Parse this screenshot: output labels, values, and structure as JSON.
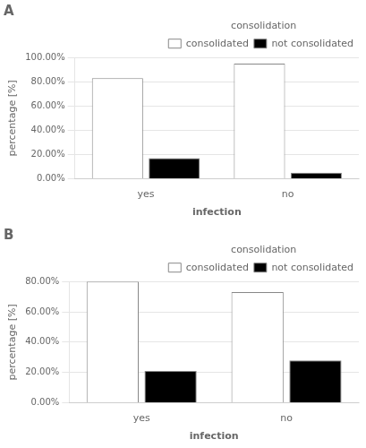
{
  "chart_data": [
    {
      "type": "bar",
      "title": "A",
      "categories": [
        "yes",
        "no"
      ],
      "series": [
        {
          "name": "consolidated",
          "color": "#ffffff",
          "values": [
            83.0,
            95.0
          ]
        },
        {
          "name": "not consolidated",
          "color": "#000000",
          "values": [
            17.0,
            5.0
          ]
        }
      ],
      "ylim": [
        0,
        100
      ],
      "yticks": [
        {
          "value": 0,
          "label": "0.00%"
        },
        {
          "value": 20,
          "label": "20.00%"
        },
        {
          "value": 40,
          "label": "40.00%"
        },
        {
          "value": 60,
          "label": "60.00%"
        },
        {
          "value": 80,
          "label": "80.00%"
        },
        {
          "value": 100,
          "label": "100.00%"
        }
      ],
      "y_label": "percentage [%]",
      "x_label": "infection",
      "legend_title": "consolidation",
      "legend": "upper right",
      "grid": true
    },
    {
      "type": "bar",
      "title": "B",
      "categories": [
        "yes",
        "no"
      ],
      "series": [
        {
          "name": "consolidated",
          "color": "#ffffff",
          "values": [
            80.0,
            73.0
          ]
        },
        {
          "name": "not consolidated",
          "color": "#000000",
          "values": [
            21.0,
            28.0
          ]
        }
      ],
      "ylim": [
        0,
        80
      ],
      "yticks": [
        {
          "value": 0,
          "label": "0.00%"
        },
        {
          "value": 20,
          "label": "20.00%"
        },
        {
          "value": 40,
          "label": "40.00%"
        },
        {
          "value": 60,
          "label": "60.00%"
        },
        {
          "value": 80,
          "label": "80.00%"
        }
      ],
      "y_label": "percentage [%]",
      "x_label": "infection",
      "legend_title": "consolidation",
      "legend": "upper right",
      "grid": true
    }
  ]
}
